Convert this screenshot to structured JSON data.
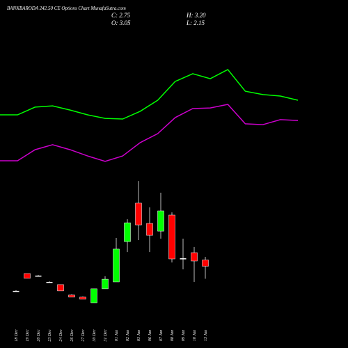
{
  "chart_data": {
    "type": "candlestick",
    "title": "BANKBARODA 242.50 CE Options Chart MunafaSutra.com",
    "info": [
      "C: 2.75",
      "O: 3.05",
      "H: 3.20",
      "L: 2.15"
    ],
    "categories": [
      "18 Dec",
      "19 Dec",
      "20 Dec",
      "23 Dec",
      "24 Dec",
      "26 Dec",
      "27 Dec",
      "30 Dec",
      "31 Dec",
      "01 Jan",
      "02 Jan",
      "03 Jan",
      "06 Jan",
      "07 Jan",
      "08 Jan",
      "09 Jan",
      "10 Jan",
      "13 Jan"
    ],
    "open": [
      1.55,
      2.4,
      2.3,
      2.0,
      1.87,
      1.37,
      1.27,
      1.0,
      1.67,
      2.0,
      3.93,
      5.77,
      4.8,
      4.43,
      5.2,
      3.13,
      3.4,
      3.05
    ],
    "high": [
      1.6,
      2.4,
      2.33,
      2.03,
      1.87,
      1.4,
      1.3,
      1.67,
      2.27,
      4.1,
      5.0,
      6.83,
      5.57,
      6.27,
      5.33,
      4.07,
      3.67,
      3.2
    ],
    "low": [
      1.55,
      2.17,
      2.28,
      1.98,
      1.57,
      1.27,
      1.17,
      1.0,
      1.67,
      2.0,
      3.43,
      4.0,
      3.43,
      4.07,
      2.93,
      2.6,
      2.0,
      2.15
    ],
    "close": [
      1.57,
      2.17,
      2.28,
      2.0,
      1.57,
      1.27,
      1.17,
      1.67,
      2.13,
      3.57,
      4.83,
      4.73,
      4.23,
      5.4,
      3.1,
      3.13,
      3.0,
      2.75
    ],
    "up_color": "#00ff00",
    "down_color": "#ff0000",
    "doji_color": "#ffffff",
    "lines": [
      {
        "color": "#00ff00",
        "values": [
          10.0,
          10.0,
          10.37,
          10.43,
          10.23,
          10.0,
          9.83,
          9.8,
          10.17,
          10.7,
          11.6,
          11.97,
          11.73,
          12.17,
          11.13,
          10.97,
          10.9,
          10.7
        ]
      },
      {
        "color": "#cc00cc",
        "values": [
          7.8,
          7.8,
          8.33,
          8.57,
          8.33,
          8.03,
          7.77,
          8.03,
          8.67,
          9.1,
          9.87,
          10.3,
          10.33,
          10.5,
          9.57,
          9.53,
          9.77,
          9.73
        ]
      }
    ],
    "ylim": [
      0,
      13.5
    ]
  }
}
